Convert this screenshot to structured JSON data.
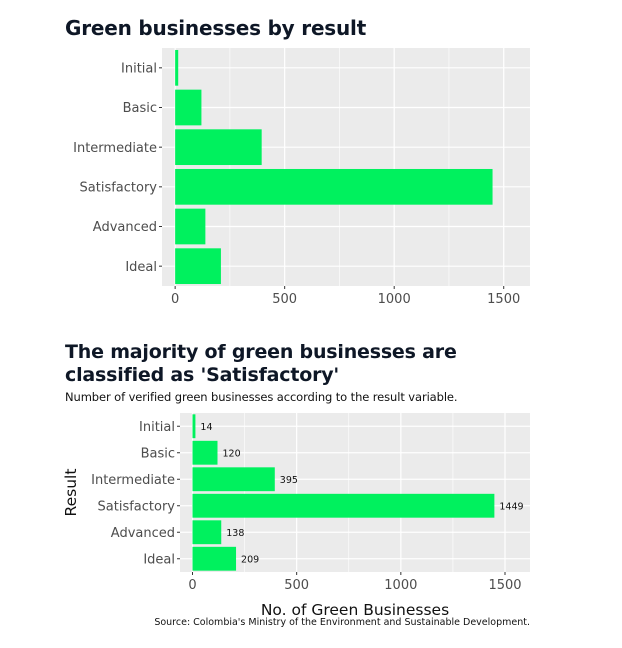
{
  "charts": [
    {
      "title": "Green businesses by result",
      "subtitle": "",
      "xlabel": "",
      "ylabel": ""
    },
    {
      "title": "The majority of green businesses are classified as 'Satisfactory'",
      "subtitle": "Number of verified green businesses according to the result variable.",
      "xlabel": "No. of Green Businesses",
      "ylabel": "Result",
      "source": "Source: Colombia's Ministry of the Environment and Sustainable Development."
    }
  ],
  "colors": {
    "bar": "#00f15e",
    "panel": "#ebebeb",
    "grid": "#ffffff"
  },
  "chart_data": [
    {
      "type": "bar",
      "orientation": "horizontal",
      "title": "Green businesses by result",
      "categories": [
        "Initial",
        "Basic",
        "Intermediate",
        "Satisfactory",
        "Advanced",
        "Ideal"
      ],
      "values": [
        14,
        120,
        395,
        1449,
        138,
        209
      ],
      "xticks": [
        0,
        500,
        1000,
        1500
      ],
      "xlim": [
        -60,
        1620
      ],
      "grid": true,
      "legend": "none"
    },
    {
      "type": "bar",
      "orientation": "horizontal",
      "title": "The majority of green businesses are classified as 'Satisfactory'",
      "xlabel": "No. of Green Businesses",
      "ylabel": "Result",
      "categories": [
        "Initial",
        "Basic",
        "Intermediate",
        "Satisfactory",
        "Advanced",
        "Ideal"
      ],
      "values": [
        14,
        120,
        395,
        1449,
        138,
        209
      ],
      "data_labels": [
        "14",
        "120",
        "395",
        "1449",
        "138",
        "209"
      ],
      "xticks": [
        0,
        500,
        1000,
        1500
      ],
      "xlim": [
        -60,
        1620
      ],
      "grid": true,
      "legend": "none"
    }
  ]
}
